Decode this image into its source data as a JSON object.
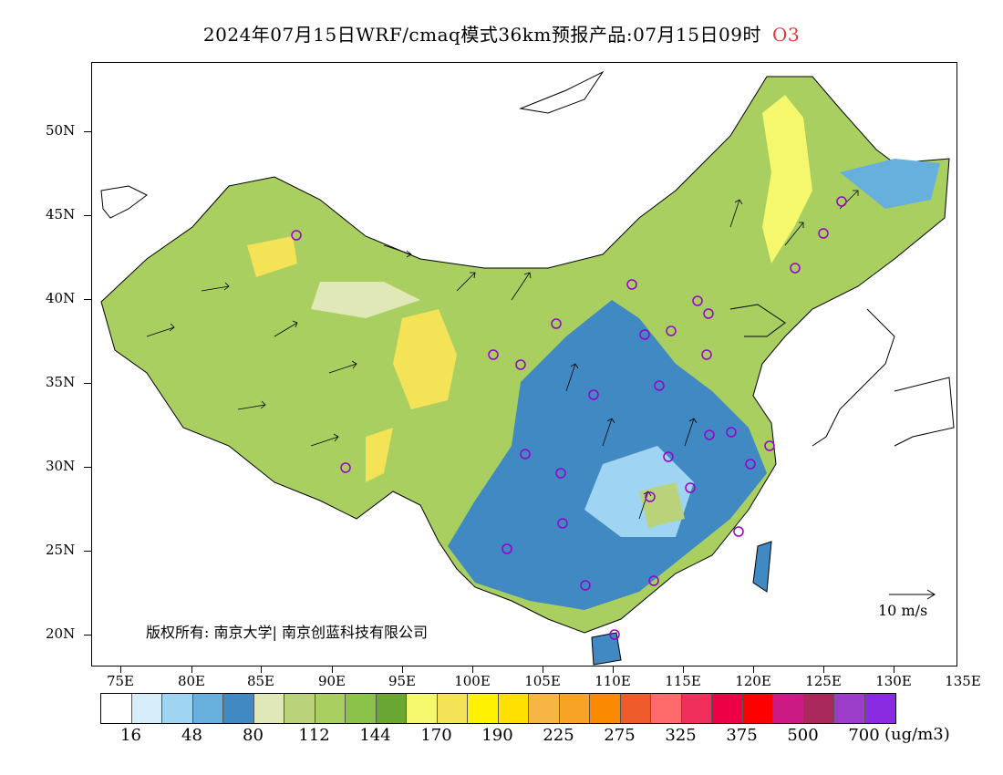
{
  "title": {
    "text": "2024年07月15日WRF/cmaq模式36km预报产品:07月15日09时",
    "pollutant": "O3"
  },
  "map": {
    "lat_labels": [
      "50N",
      "45N",
      "40N",
      "35N",
      "30N",
      "25N",
      "20N"
    ],
    "lon_labels": [
      "75E",
      "80E",
      "85E",
      "90E",
      "95E",
      "100E",
      "105E",
      "110E",
      "115E",
      "120E",
      "125E",
      "130E",
      "135E"
    ],
    "copyright": "版权所有: 南京大学| 南京创蓝科技有限公司",
    "wind_reference": "10 m/s",
    "station_marker_color": "#9900cc"
  },
  "legend": {
    "colors": [
      "#ffffff",
      "#d6eef9",
      "#9fd5f2",
      "#67b0de",
      "#4089c3",
      "#dfe8b6",
      "#bad37b",
      "#a9cf61",
      "#8bc34a",
      "#6aa632",
      "#f5f76c",
      "#f4e357",
      "#fff200",
      "#ffe000",
      "#f7b543",
      "#f7a325",
      "#fb8a00",
      "#ee5c2b",
      "#ff6b6b",
      "#f12f5c",
      "#ee0047",
      "#ff0000",
      "#cc1a84",
      "#a8295a",
      "#9b3dc8",
      "#8a2be2"
    ],
    "labels": [
      "16",
      "48",
      "80",
      "112",
      "144",
      "170",
      "190",
      "225",
      "275",
      "325",
      "375",
      "500",
      "700"
    ],
    "units": "(ug/m3)"
  }
}
